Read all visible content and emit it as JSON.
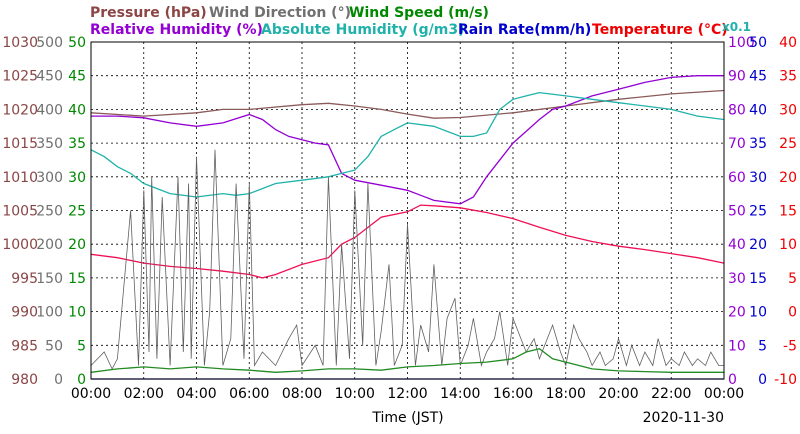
{
  "chart_data": {
    "type": "line",
    "date": "2020-11-30",
    "xlabel": "Time (JST)",
    "x_ticks": [
      "00:00",
      "02:00",
      "04:00",
      "06:00",
      "08:00",
      "10:00",
      "12:00",
      "14:00",
      "16:00",
      "18:00",
      "20:00",
      "22:00",
      "00:00"
    ],
    "grid": true,
    "axes": {
      "pressure": {
        "label": "Pressure (hPa)",
        "range": [
          980,
          1030
        ],
        "ticks": [
          "980",
          "985",
          "990",
          "995",
          "1000",
          "1005",
          "1010",
          "1015",
          "1020",
          "1025",
          "1030"
        ],
        "color": "#8b4545"
      },
      "wind_direction": {
        "label": "Wind Direction (°)",
        "range": [
          0,
          500
        ],
        "ticks": [
          "0",
          "50",
          "100",
          "150",
          "200",
          "250",
          "300",
          "350",
          "400",
          "450",
          "500"
        ],
        "color": "#707070"
      },
      "wind_speed": {
        "label": "Wind Speed (m/s)",
        "range": [
          0,
          50
        ],
        "ticks": [
          "0",
          "5",
          "10",
          "15",
          "20",
          "25",
          "30",
          "35",
          "40",
          "45",
          "50"
        ],
        "color": "#008800"
      },
      "relative_humidity": {
        "label": "Relative Humidity (%)",
        "range": [
          0,
          100
        ],
        "ticks": [
          "0",
          "10",
          "20",
          "30",
          "40",
          "50",
          "60",
          "70",
          "80",
          "90",
          "100"
        ],
        "color": "#9400d3"
      },
      "absolute_humidity": {
        "label": "Absolute Humidity (g/m3)",
        "multiplier_label": "x0.1",
        "range": [
          0,
          100
        ],
        "color": "#20b2aa"
      },
      "rain_rate": {
        "label": "Rain Rate(mm/h)",
        "range": [
          0,
          50
        ],
        "ticks": [
          "0",
          "5",
          "10",
          "15",
          "20",
          "25",
          "30",
          "35",
          "40",
          "45",
          "50"
        ],
        "color": "#0000cc"
      },
      "temperature": {
        "label": "Temperature (°C)",
        "range": [
          -10,
          40
        ],
        "ticks": [
          "-10",
          "-5",
          "0",
          "5",
          "10",
          "15",
          "20",
          "25",
          "30",
          "35",
          "40"
        ],
        "color": "#ee0000"
      }
    },
    "series": [
      {
        "name": "Pressure (hPa)",
        "axis": "pressure",
        "color": "#8b5a5a",
        "x": [
          0,
          2,
          4,
          5,
          6,
          8,
          9,
          10,
          11,
          12,
          13,
          14,
          16,
          18,
          20,
          22,
          24
        ],
        "y": [
          1019.5,
          1019,
          1019.5,
          1020,
          1020,
          1020.7,
          1020.9,
          1020.5,
          1020,
          1019.3,
          1018.7,
          1018.8,
          1019.5,
          1020.5,
          1021.5,
          1022.3,
          1022.8
        ]
      },
      {
        "name": "Relative Humidity (%)",
        "axis": "relative_humidity",
        "color": "#9400d3",
        "x": [
          0,
          1,
          2,
          3,
          4,
          5,
          6,
          6.5,
          7,
          7.5,
          8,
          8.5,
          9,
          9.5,
          10,
          11,
          12,
          12.5,
          13,
          14,
          14.5,
          15,
          16,
          17,
          17.5,
          18,
          19,
          20,
          21,
          22,
          23,
          24
        ],
        "y": [
          78,
          78,
          77.5,
          76,
          75,
          76,
          78.5,
          77,
          74,
          72,
          71,
          70,
          69.5,
          61,
          59,
          57.5,
          56,
          54.5,
          53,
          52,
          54,
          60,
          70,
          77,
          80,
          81,
          84,
          86,
          88,
          89.5,
          90,
          90
        ]
      },
      {
        "name": "Absolute Humidity (g/m3)",
        "axis": "absolute_humidity",
        "color": "#20b2aa",
        "x": [
          0,
          0.5,
          1,
          1.5,
          2,
          3,
          4,
          5,
          5.5,
          6,
          7,
          8,
          9,
          9.5,
          10,
          10.5,
          11,
          11.5,
          12,
          13,
          14,
          14.5,
          15,
          15.5,
          16,
          16.5,
          17,
          18,
          19,
          20,
          21,
          22,
          23,
          24
        ],
        "y": [
          68,
          66,
          63,
          61,
          58,
          55,
          54,
          55,
          54.5,
          55,
          58,
          59,
          60,
          61,
          62,
          66,
          72,
          74,
          76,
          75,
          72,
          72,
          73,
          80,
          83,
          84,
          85,
          84,
          83,
          82,
          81,
          80,
          78,
          77
        ]
      },
      {
        "name": "Temperature (°C)",
        "axis": "temperature",
        "color": "#ee1155",
        "x": [
          0,
          1,
          2,
          3,
          4,
          5,
          6,
          6.5,
          7,
          8,
          9,
          9.5,
          10,
          11,
          12,
          12.5,
          13,
          14,
          15,
          16,
          17,
          18,
          19,
          20,
          21,
          22,
          23,
          24
        ],
        "y": [
          8.5,
          8,
          7.2,
          6.7,
          6.4,
          6,
          5.5,
          5,
          5.5,
          7,
          8,
          10,
          11,
          14,
          14.8,
          15.8,
          15.7,
          15.4,
          14.7,
          13.8,
          12.5,
          11.3,
          10.4,
          9.7,
          9.2,
          8.6,
          8,
          7.2
        ]
      },
      {
        "name": "Wind Direction (°)",
        "axis": "wind_direction",
        "color": "#606060",
        "x": [
          0,
          0.5,
          0.8,
          1,
          1.5,
          1.8,
          2,
          2.2,
          2.3,
          2.5,
          2.7,
          3,
          3.3,
          3.5,
          3.7,
          3.8,
          4,
          4.3,
          4.5,
          4.7,
          5,
          5.3,
          5.5,
          5.8,
          6,
          6.2,
          6.5,
          7,
          7.5,
          7.8,
          8,
          8.5,
          8.8,
          9,
          9.3,
          9.5,
          9.8,
          10,
          10.3,
          10.5,
          10.8,
          11,
          11.3,
          11.5,
          11.8,
          12,
          12.3,
          12.5,
          12.8,
          13,
          13.3,
          13.5,
          13.8,
          14,
          14.3,
          14.5,
          14.8,
          15,
          15.3,
          15.5,
          15.8,
          16,
          16.3,
          16.5,
          16.8,
          17,
          17.3,
          17.5,
          17.8,
          18,
          18.3,
          18.5,
          18.8,
          19,
          19.3,
          19.5,
          19.8,
          20,
          20.3,
          20.5,
          20.8,
          21,
          21.3,
          21.5,
          21.8,
          22,
          22.3,
          22.5,
          22.8,
          23,
          23.3,
          23.5,
          23.8,
          24
        ],
        "y": [
          20,
          40,
          15,
          30,
          250,
          20,
          280,
          40,
          300,
          30,
          270,
          20,
          300,
          40,
          290,
          30,
          330,
          20,
          100,
          340,
          20,
          60,
          290,
          30,
          290,
          20,
          40,
          20,
          60,
          80,
          20,
          50,
          20,
          300,
          20,
          200,
          30,
          280,
          50,
          290,
          20,
          70,
          170,
          20,
          50,
          230,
          20,
          80,
          40,
          170,
          20,
          90,
          120,
          20,
          50,
          90,
          20,
          40,
          60,
          100,
          20,
          90,
          60,
          40,
          60,
          30,
          60,
          80,
          40,
          20,
          80,
          60,
          40,
          20,
          40,
          20,
          30,
          60,
          20,
          50,
          20,
          40,
          20,
          60,
          20,
          30,
          20,
          40,
          20,
          30,
          20,
          40,
          20,
          20
        ]
      },
      {
        "name": "Wind Speed (m/s)",
        "axis": "wind_speed",
        "color": "#228b22",
        "x": [
          0,
          1,
          2,
          3,
          4,
          5,
          6,
          7,
          8,
          9,
          10,
          11,
          12,
          13,
          14,
          15,
          16,
          16.5,
          17,
          17.5,
          18,
          19,
          20,
          21,
          22,
          23,
          24
        ],
        "y": [
          1,
          1.5,
          1.8,
          1.5,
          1.8,
          1.5,
          1.3,
          1,
          1.2,
          1.5,
          1.5,
          1.3,
          1.8,
          2,
          2.3,
          2.5,
          3,
          4,
          4.5,
          3,
          2.5,
          1.5,
          1.2,
          1.1,
          1,
          1,
          1
        ]
      },
      {
        "name": "Rain Rate(mm/h)",
        "axis": "rain_rate",
        "color": "#0000cc",
        "x": [
          0,
          24
        ],
        "y": [
          0,
          0
        ]
      }
    ]
  }
}
